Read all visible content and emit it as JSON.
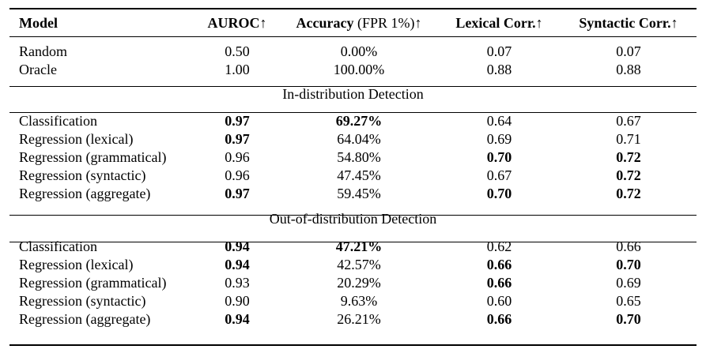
{
  "table": {
    "headers": {
      "model": "Model",
      "auroc": "AUROC↑",
      "accuracy_main": "Accuracy",
      "accuracy_sub": " (FPR 1%)↑",
      "lexical": "Lexical Corr.↑",
      "syntactic": "Syntactic Corr.↑"
    },
    "baselines": [
      {
        "model": "Random",
        "auroc": "0.50",
        "accuracy": "0.00%",
        "lexical": "0.07",
        "syntactic": "0.07"
      },
      {
        "model": "Oracle",
        "auroc": "1.00",
        "accuracy": "100.00%",
        "lexical": "0.88",
        "syntactic": "0.88"
      }
    ],
    "sections": [
      {
        "title": "In-distribution Detection",
        "rows": [
          {
            "model": "Classification",
            "auroc": "0.97",
            "accuracy": "69.27%",
            "lexical": "0.64",
            "syntactic": "0.67"
          },
          {
            "model": "Regression (lexical)",
            "auroc": "0.97",
            "accuracy": "64.04%",
            "lexical": "0.69",
            "syntactic": "0.71"
          },
          {
            "model": "Regression (grammatical)",
            "auroc": "0.96",
            "accuracy": "54.80%",
            "lexical": "0.70",
            "syntactic": "0.72"
          },
          {
            "model": "Regression (syntactic)",
            "auroc": "0.96",
            "accuracy": "47.45%",
            "lexical": "0.67",
            "syntactic": "0.72"
          },
          {
            "model": "Regression (aggregate)",
            "auroc": "0.97",
            "accuracy": "59.45%",
            "lexical": "0.70",
            "syntactic": "0.72"
          }
        ]
      },
      {
        "title": "Out-of-distribution Detection",
        "rows": [
          {
            "model": "Classification",
            "auroc": "0.94",
            "accuracy": "47.21%",
            "lexical": "0.62",
            "syntactic": "0.66"
          },
          {
            "model": "Regression (lexical)",
            "auroc": "0.94",
            "accuracy": "42.57%",
            "lexical": "0.66",
            "syntactic": "0.70"
          },
          {
            "model": "Regression (grammatical)",
            "auroc": "0.93",
            "accuracy": "20.29%",
            "lexical": "0.66",
            "syntactic": "0.69"
          },
          {
            "model": "Regression (syntactic)",
            "auroc": "0.90",
            "accuracy": "9.63%",
            "lexical": "0.60",
            "syntactic": "0.65"
          },
          {
            "model": "Regression (aggregate)",
            "auroc": "0.94",
            "accuracy": "26.21%",
            "lexical": "0.66",
            "syntactic": "0.70"
          }
        ]
      }
    ]
  }
}
